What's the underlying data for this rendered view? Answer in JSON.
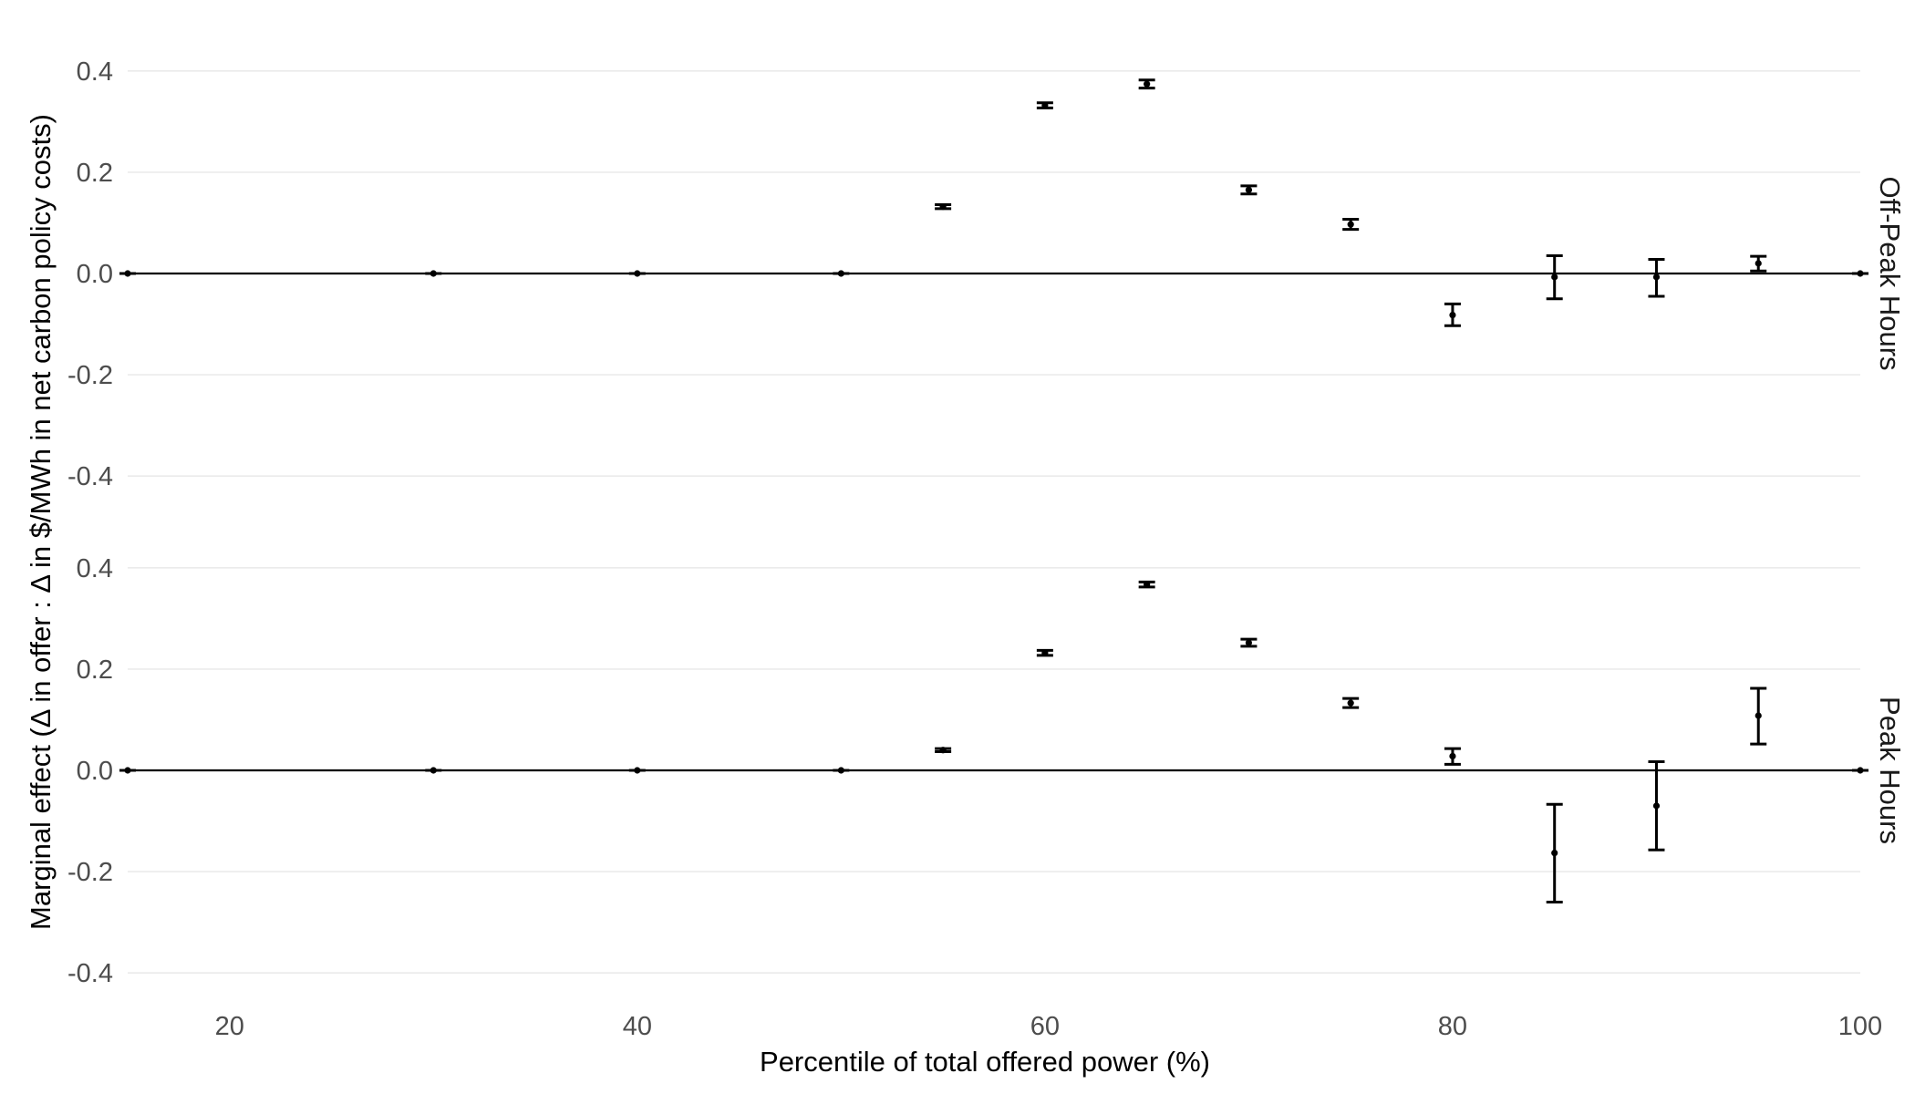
{
  "chart_data": {
    "type": "scatter",
    "subtype": "point-range with error bars, faceted",
    "xlabel": "Percentile of total offered power (%)",
    "ylabel": "Marginal effect (Δ in offer : Δ in $/MWh in net carbon policy costs)",
    "x_ticks": [
      20,
      40,
      60,
      80,
      100
    ],
    "xlim": [
      15,
      100
    ],
    "y_ticks": [
      -0.4,
      -0.2,
      0.0,
      0.2,
      0.4
    ],
    "y_tick_labels": [
      "-0.4",
      "-0.2",
      "0.0",
      "0.2",
      "0.4"
    ],
    "x_tick_labels": [
      "20",
      "40",
      "60",
      "80",
      "100"
    ],
    "ylim": [
      -0.45,
      0.45
    ],
    "grid": true,
    "reference_line": 0,
    "facets": [
      {
        "name": "Off-Peak Hours",
        "points": [
          {
            "x": 15,
            "y": 0.0,
            "lo": 0.0,
            "hi": 0.0
          },
          {
            "x": 30,
            "y": 0.0,
            "lo": 0.0,
            "hi": 0.0
          },
          {
            "x": 40,
            "y": 0.0,
            "lo": 0.0,
            "hi": 0.0
          },
          {
            "x": 50,
            "y": 0.0,
            "lo": 0.0,
            "hi": 0.0
          },
          {
            "x": 55,
            "y": 0.132,
            "lo": 0.128,
            "hi": 0.136
          },
          {
            "x": 60,
            "y": 0.332,
            "lo": 0.327,
            "hi": 0.337
          },
          {
            "x": 65,
            "y": 0.374,
            "lo": 0.366,
            "hi": 0.382
          },
          {
            "x": 70,
            "y": 0.165,
            "lo": 0.157,
            "hi": 0.173
          },
          {
            "x": 75,
            "y": 0.097,
            "lo": 0.087,
            "hi": 0.107
          },
          {
            "x": 80,
            "y": -0.082,
            "lo": -0.103,
            "hi": -0.06
          },
          {
            "x": 85,
            "y": -0.007,
            "lo": -0.05,
            "hi": 0.035
          },
          {
            "x": 90,
            "y": -0.007,
            "lo": -0.045,
            "hi": 0.028
          },
          {
            "x": 95,
            "y": 0.02,
            "lo": 0.005,
            "hi": 0.034
          },
          {
            "x": 100,
            "y": 0.0,
            "lo": 0.0,
            "hi": 0.0
          }
        ]
      },
      {
        "name": "Peak Hours",
        "points": [
          {
            "x": 15,
            "y": 0.0,
            "lo": 0.0,
            "hi": 0.0
          },
          {
            "x": 30,
            "y": 0.0,
            "lo": 0.0,
            "hi": 0.0
          },
          {
            "x": 40,
            "y": 0.0,
            "lo": 0.0,
            "hi": 0.0
          },
          {
            "x": 50,
            "y": 0.0,
            "lo": 0.0,
            "hi": 0.0
          },
          {
            "x": 55,
            "y": 0.04,
            "lo": 0.037,
            "hi": 0.043
          },
          {
            "x": 60,
            "y": 0.232,
            "lo": 0.227,
            "hi": 0.237
          },
          {
            "x": 65,
            "y": 0.367,
            "lo": 0.362,
            "hi": 0.372
          },
          {
            "x": 70,
            "y": 0.252,
            "lo": 0.245,
            "hi": 0.259
          },
          {
            "x": 75,
            "y": 0.133,
            "lo": 0.124,
            "hi": 0.142
          },
          {
            "x": 80,
            "y": 0.028,
            "lo": 0.012,
            "hi": 0.043
          },
          {
            "x": 85,
            "y": -0.163,
            "lo": -0.26,
            "hi": -0.067
          },
          {
            "x": 90,
            "y": -0.07,
            "lo": -0.157,
            "hi": 0.017
          },
          {
            "x": 95,
            "y": 0.108,
            "lo": 0.052,
            "hi": 0.162
          },
          {
            "x": 100,
            "y": 0.0,
            "lo": 0.0,
            "hi": 0.0
          }
        ]
      }
    ]
  }
}
